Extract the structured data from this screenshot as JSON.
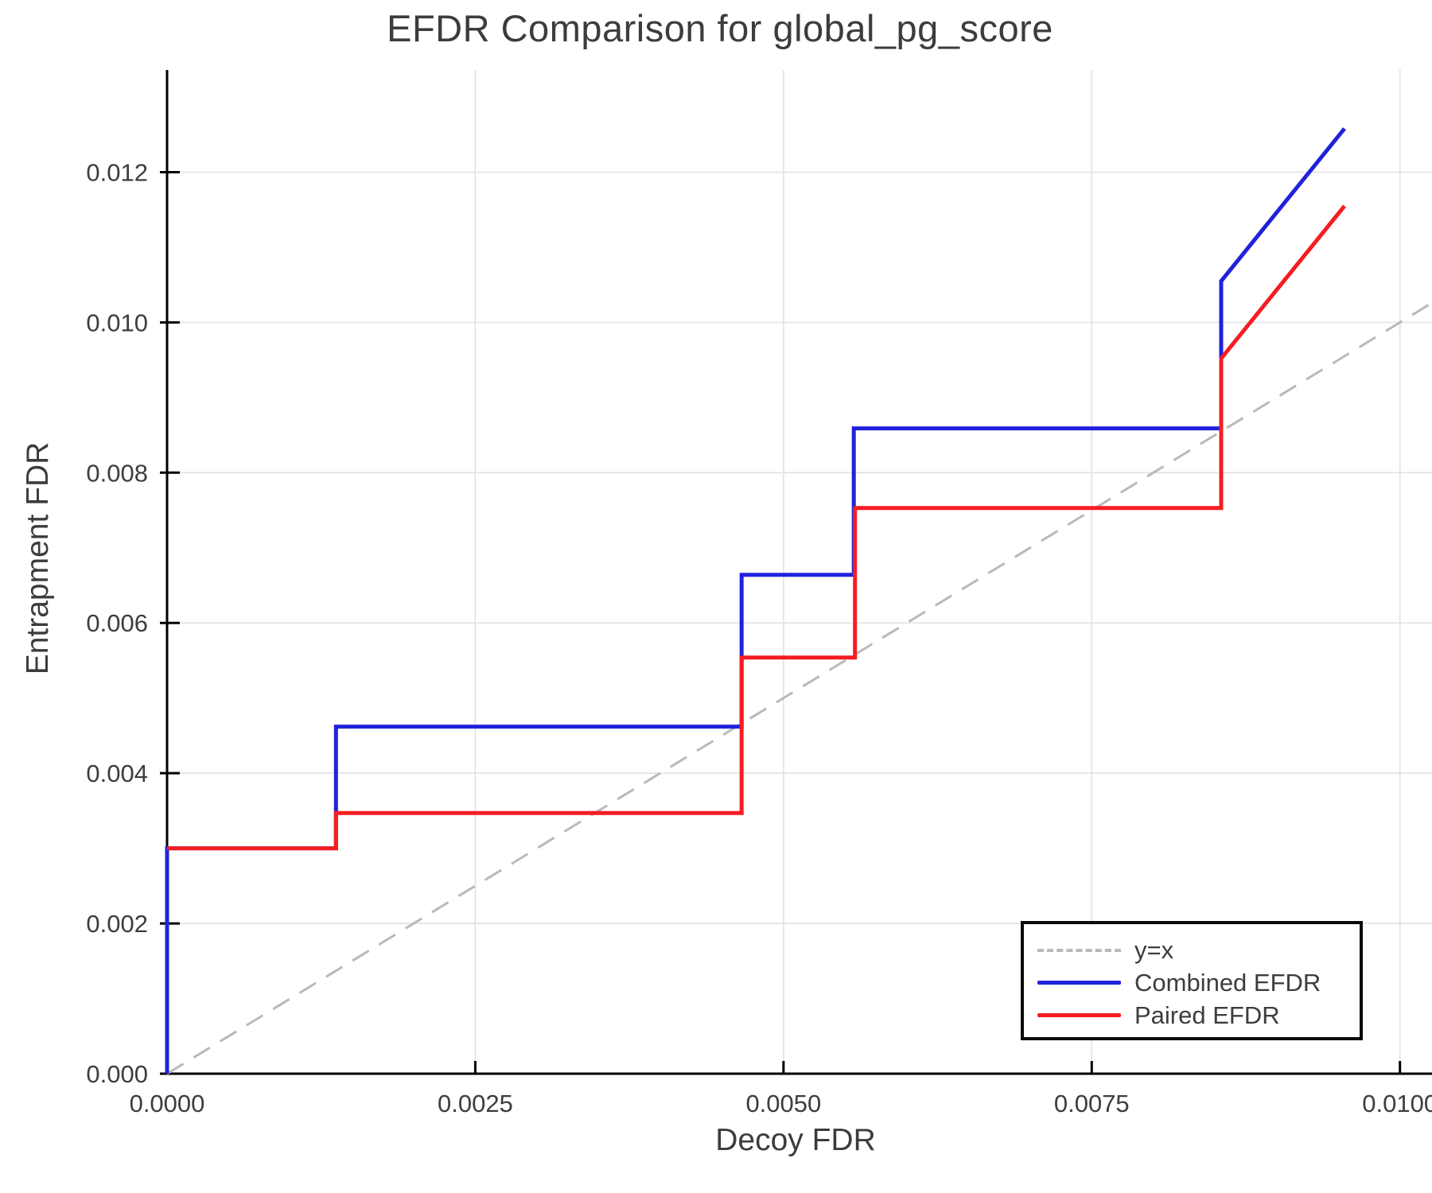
{
  "chart_data": {
    "type": "line",
    "title": "EFDR Comparison for global_pg_score",
    "xlabel": "Decoy FDR",
    "ylabel": "Entrapment FDR",
    "xlim": [
      0,
      0.01026
    ],
    "ylim": [
      0,
      0.01336
    ],
    "grid": true,
    "legend_position": "bottom-right",
    "xticks": {
      "values": [
        0.0,
        0.0025,
        0.005,
        0.0075,
        0.01
      ],
      "labels": [
        "0.0000",
        "0.0025",
        "0.0050",
        "0.0075",
        "0.0100"
      ]
    },
    "yticks": {
      "values": [
        0.0,
        0.002,
        0.004,
        0.006,
        0.008,
        0.01,
        0.012
      ],
      "labels": [
        "0.000",
        "0.002",
        "0.004",
        "0.006",
        "0.008",
        "0.010",
        "0.012"
      ]
    },
    "axis_color": "#000000",
    "grid_color": "#e4e4e4",
    "text_color": "#3d3d3d",
    "series": [
      {
        "name": "y=x",
        "color": "#b9b9b9",
        "width": 3,
        "dash": "24 15",
        "points": [
          [
            0,
            0
          ],
          [
            0.01026,
            0.01026
          ]
        ]
      },
      {
        "name": "Combined EFDR",
        "color": "#2121dc",
        "width": 5,
        "dash": "",
        "points": [
          [
            0,
            0
          ],
          [
            0,
            0.003
          ],
          [
            0.00137,
            0.003
          ],
          [
            0.00137,
            0.00462
          ],
          [
            0.00466,
            0.00462
          ],
          [
            0.00466,
            0.00664
          ],
          [
            0.00557,
            0.00664
          ],
          [
            0.00557,
            0.00859
          ],
          [
            0.00855,
            0.00859
          ],
          [
            0.00855,
            0.01055
          ],
          [
            0.00955,
            0.01258
          ]
        ]
      },
      {
        "name": "Paired EFDR",
        "color": "#f51d23",
        "width": 5,
        "dash": "",
        "points": [
          [
            0,
            0.003
          ],
          [
            0.00137,
            0.003
          ],
          [
            0.00137,
            0.00347
          ],
          [
            0.00466,
            0.00347
          ],
          [
            0.00466,
            0.00554
          ],
          [
            0.00558,
            0.00554
          ],
          [
            0.00558,
            0.00753
          ],
          [
            0.00855,
            0.00753
          ],
          [
            0.00855,
            0.00952
          ],
          [
            0.00955,
            0.01155
          ]
        ]
      }
    ]
  }
}
